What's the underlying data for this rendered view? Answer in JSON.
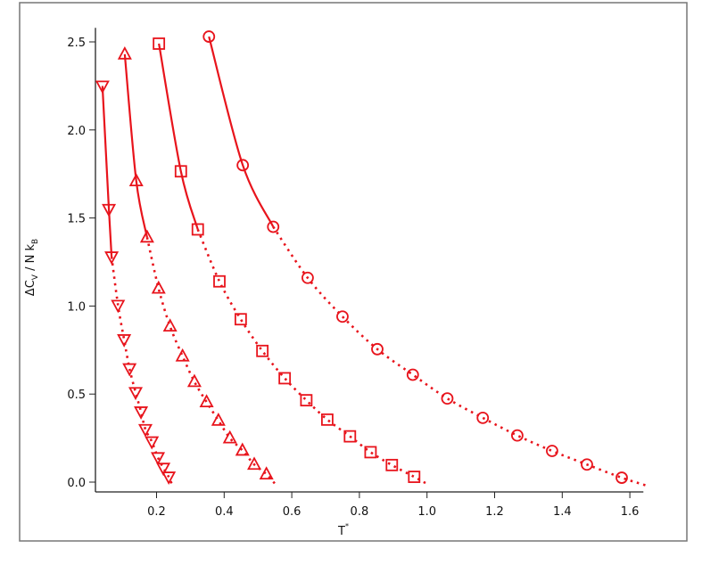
{
  "chart_data": {
    "type": "line",
    "xlabel": "T",
    "xlabel_sup": "*",
    "ylabel_parts": {
      "delta": "ΔC",
      "sub1": "V",
      "mid": " / N k",
      "sub2": "B"
    },
    "xlim": [
      0.02,
      1.64
    ],
    "ylim": [
      -0.05,
      2.58
    ],
    "xticks": [
      0.2,
      0.4,
      0.6,
      0.8,
      1.0,
      1.2,
      1.4,
      1.6
    ],
    "xtick_labels": [
      "0.2",
      "0.4",
      "0.6",
      "0.8",
      "1.0",
      "1.2",
      "1.4",
      "1.6"
    ],
    "yticks": [
      0.0,
      0.5,
      1.0,
      1.5,
      2.0,
      2.5
    ],
    "ytick_labels": [
      "0.0",
      "0.5",
      "1.0",
      "1.5",
      "2.0",
      "2.5"
    ],
    "grid": false,
    "color": "#e8141c",
    "series": [
      {
        "marker": "triangle-down",
        "solid_points": 3,
        "extend_to": [
          0.245,
          -0.01
        ],
        "x": [
          0.04,
          0.059,
          0.067,
          0.086,
          0.104,
          0.12,
          0.138,
          0.154,
          0.167,
          0.186,
          0.204,
          0.22,
          0.236
        ],
        "y": [
          2.25,
          1.55,
          1.28,
          1.005,
          0.81,
          0.645,
          0.51,
          0.4,
          0.3,
          0.23,
          0.14,
          0.08,
          0.03
        ]
      },
      {
        "marker": "triangle-up",
        "solid_points": 3,
        "extend_to": [
          0.555,
          -0.02
        ],
        "x": [
          0.106,
          0.14,
          0.172,
          0.206,
          0.24,
          0.277,
          0.312,
          0.348,
          0.383,
          0.417,
          0.454,
          0.489,
          0.525
        ],
        "y": [
          2.43,
          1.71,
          1.39,
          1.1,
          0.885,
          0.715,
          0.57,
          0.455,
          0.35,
          0.25,
          0.18,
          0.1,
          0.045
        ]
      },
      {
        "marker": "square",
        "solid_points": 3,
        "extend_to": [
          1.0,
          -0.01
        ],
        "x": [
          0.207,
          0.272,
          0.322,
          0.386,
          0.449,
          0.513,
          0.579,
          0.643,
          0.705,
          0.772,
          0.833,
          0.896,
          0.962
        ],
        "y": [
          2.49,
          1.765,
          1.435,
          1.14,
          0.925,
          0.745,
          0.59,
          0.465,
          0.355,
          0.26,
          0.17,
          0.097,
          0.03
        ]
      },
      {
        "marker": "circle",
        "solid_points": 3,
        "extend_to": [
          1.65,
          -0.02
        ],
        "x": [
          0.355,
          0.455,
          0.545,
          0.647,
          0.75,
          0.853,
          0.958,
          1.06,
          1.165,
          1.267,
          1.37,
          1.473,
          1.576
        ],
        "y": [
          2.53,
          1.8,
          1.45,
          1.16,
          0.94,
          0.755,
          0.61,
          0.475,
          0.365,
          0.265,
          0.177,
          0.1,
          0.025
        ]
      }
    ]
  }
}
